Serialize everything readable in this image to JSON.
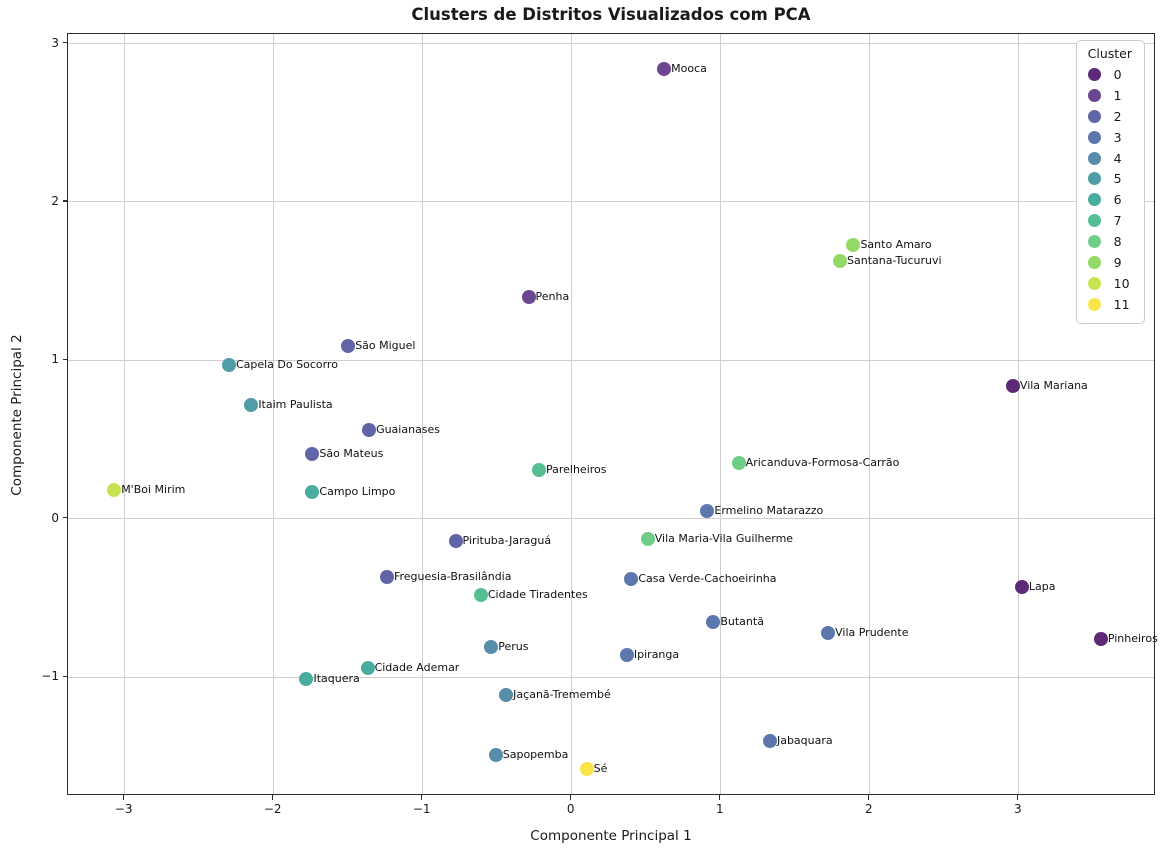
{
  "chart_data": {
    "type": "scatter",
    "title": "Clusters de Distritos Visualizados com PCA",
    "xlabel": "Componente Principal 1",
    "ylabel": "Componente Principal 2",
    "xlim": [
      -3.38,
      3.92
    ],
    "ylim": [
      -1.75,
      3.06
    ],
    "grid": true,
    "xticks": [
      {
        "value": -3,
        "label": "−3"
      },
      {
        "value": -2,
        "label": "−2"
      },
      {
        "value": -1,
        "label": "−1"
      },
      {
        "value": 0,
        "label": "0"
      },
      {
        "value": 1,
        "label": "1"
      },
      {
        "value": 2,
        "label": "2"
      },
      {
        "value": 3,
        "label": "3"
      }
    ],
    "yticks": [
      {
        "value": -1,
        "label": "−1"
      },
      {
        "value": 0,
        "label": "0"
      },
      {
        "value": 1,
        "label": "1"
      },
      {
        "value": 2,
        "label": "2"
      },
      {
        "value": 3,
        "label": "3"
      }
    ],
    "legend": {
      "title": "Cluster",
      "position": "upper right",
      "entries": [
        {
          "label": "0",
          "color": "#5c2a77"
        },
        {
          "label": "1",
          "color": "#6b4791"
        },
        {
          "label": "2",
          "color": "#6164a7"
        },
        {
          "label": "3",
          "color": "#5b77ad"
        },
        {
          "label": "4",
          "color": "#578cab"
        },
        {
          "label": "5",
          "color": "#509da8"
        },
        {
          "label": "6",
          "color": "#48ad9e"
        },
        {
          "label": "7",
          "color": "#55bf94"
        },
        {
          "label": "8",
          "color": "#70cd87"
        },
        {
          "label": "9",
          "color": "#92d968"
        },
        {
          "label": "10",
          "color": "#c8e350"
        },
        {
          "label": "11",
          "color": "#f9e54a"
        }
      ]
    },
    "points": [
      {
        "label": "Mooca",
        "x": 0.62,
        "y": 2.84,
        "cluster": 1
      },
      {
        "label": "Santo Amaro",
        "x": 1.89,
        "y": 1.73,
        "cluster": 9
      },
      {
        "label": "Santana-Tucuruvi",
        "x": 1.8,
        "y": 1.63,
        "cluster": 9
      },
      {
        "label": "Penha",
        "x": -0.29,
        "y": 1.4,
        "cluster": 1
      },
      {
        "label": "São Miguel",
        "x": -1.5,
        "y": 1.09,
        "cluster": 2
      },
      {
        "label": "Capela Do Socorro",
        "x": -2.3,
        "y": 0.97,
        "cluster": 5
      },
      {
        "label": "Vila Mariana",
        "x": 2.96,
        "y": 0.84,
        "cluster": 0
      },
      {
        "label": "Itaim Paulista",
        "x": -2.15,
        "y": 0.72,
        "cluster": 5
      },
      {
        "label": "Guaianases",
        "x": -1.36,
        "y": 0.56,
        "cluster": 2
      },
      {
        "label": "São Mateus",
        "x": -1.74,
        "y": 0.41,
        "cluster": 2
      },
      {
        "label": "Aricanduva-Formosa-Carrão",
        "x": 1.12,
        "y": 0.35,
        "cluster": 8
      },
      {
        "label": "Parelheiros",
        "x": -0.22,
        "y": 0.31,
        "cluster": 7
      },
      {
        "label": "M'Boi Mirim",
        "x": -3.07,
        "y": 0.18,
        "cluster": 10
      },
      {
        "label": "Campo Limpo",
        "x": -1.74,
        "y": 0.17,
        "cluster": 6
      },
      {
        "label": "Ermelino Matarazzo",
        "x": 0.91,
        "y": 0.05,
        "cluster": 3
      },
      {
        "label": "Vila Maria-Vila Guilherme",
        "x": 0.51,
        "y": -0.13,
        "cluster": 8
      },
      {
        "label": "Pirituba-Jaraguá",
        "x": -0.78,
        "y": -0.14,
        "cluster": 2
      },
      {
        "label": "Freguesia-Brasilândia",
        "x": -1.24,
        "y": -0.37,
        "cluster": 2
      },
      {
        "label": "Casa Verde-Cachoeirinha",
        "x": 0.4,
        "y": -0.38,
        "cluster": 3
      },
      {
        "label": "Lapa",
        "x": 3.02,
        "y": -0.43,
        "cluster": 0
      },
      {
        "label": "Cidade Tiradentes",
        "x": -0.61,
        "y": -0.48,
        "cluster": 7
      },
      {
        "label": "Butantã",
        "x": 0.95,
        "y": -0.65,
        "cluster": 3
      },
      {
        "label": "Vila Prudente",
        "x": 1.72,
        "y": -0.72,
        "cluster": 3
      },
      {
        "label": "Pinheiros",
        "x": 3.55,
        "y": -0.76,
        "cluster": 0
      },
      {
        "label": "Perus",
        "x": -0.54,
        "y": -0.81,
        "cluster": 4
      },
      {
        "label": "Ipiranga",
        "x": 0.37,
        "y": -0.86,
        "cluster": 3
      },
      {
        "label": "Cidade Ademar",
        "x": -1.37,
        "y": -0.94,
        "cluster": 6
      },
      {
        "label": "Itaquera",
        "x": -1.78,
        "y": -1.01,
        "cluster": 6
      },
      {
        "label": "Jaçanã-Tremembé",
        "x": -0.44,
        "y": -1.11,
        "cluster": 4
      },
      {
        "label": "Jabaquara",
        "x": 1.33,
        "y": -1.4,
        "cluster": 3
      },
      {
        "label": "Sapopemba",
        "x": -0.51,
        "y": -1.49,
        "cluster": 4
      },
      {
        "label": "Sé",
        "x": 0.1,
        "y": -1.58,
        "cluster": 11
      }
    ]
  }
}
